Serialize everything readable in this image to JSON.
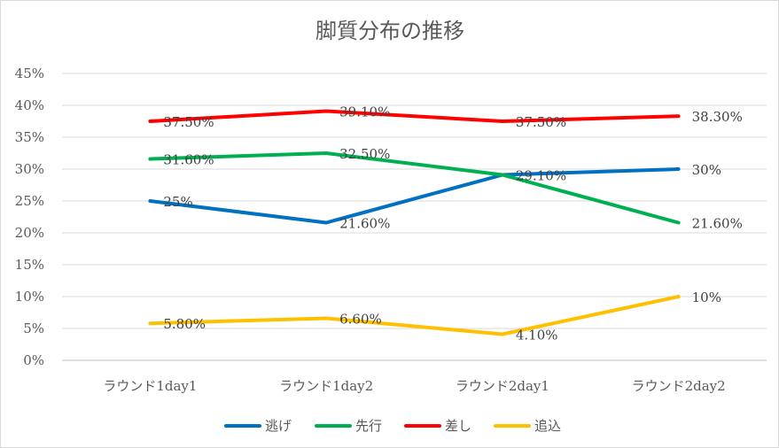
{
  "chart_data": {
    "type": "line",
    "title": "脚質分布の推移",
    "categories": [
      "ラウンド1day1",
      "ラウンド1day2",
      "ラウンド2day1",
      "ラウンド2day2"
    ],
    "ylim": [
      0,
      45
    ],
    "yticks": [
      "0%",
      "5%",
      "10%",
      "15%",
      "20%",
      "25%",
      "30%",
      "35%",
      "40%",
      "45%"
    ],
    "grid": true,
    "legend_position": "bottom",
    "series": [
      {
        "name": "逃げ",
        "color": "#0070C0",
        "values": [
          25,
          21.6,
          29.1,
          30
        ],
        "labels": [
          "25%",
          "21.60%",
          "29.10%",
          "30%"
        ]
      },
      {
        "name": "先行",
        "color": "#00B050",
        "values": [
          31.6,
          32.5,
          29.1,
          21.6
        ],
        "labels": [
          "31.60%",
          "32.50%",
          "",
          "21.60%"
        ]
      },
      {
        "name": "差し",
        "color": "#FF0000",
        "values": [
          37.5,
          39.1,
          37.5,
          38.3
        ],
        "labels": [
          "37.50%",
          "39.10%",
          "37.50%",
          "38.30%"
        ]
      },
      {
        "name": "追込",
        "color": "#FFC000",
        "values": [
          5.8,
          6.6,
          4.1,
          10
        ],
        "labels": [
          "5.80%",
          "6.60%",
          "4.10%",
          "10%"
        ]
      }
    ]
  }
}
